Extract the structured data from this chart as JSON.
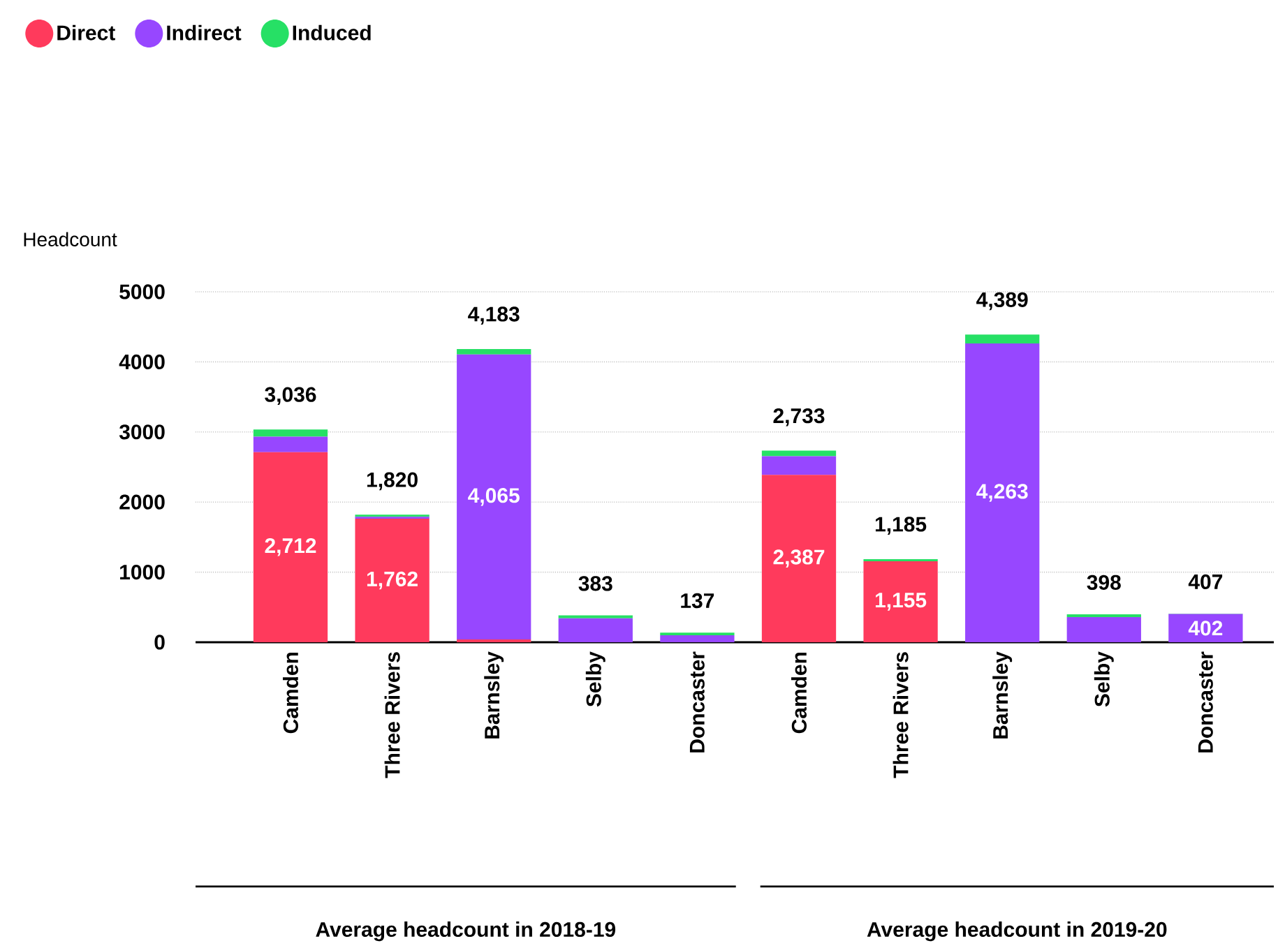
{
  "chart_data": {
    "type": "bar",
    "stacked": true,
    "ylabel": "Headcount",
    "categories": [
      "Camden",
      "Three Rivers",
      "Barnsley",
      "Selby",
      "Doncaster",
      "Camden",
      "Three Rivers",
      "Barnsley",
      "Selby",
      "Doncaster"
    ],
    "series": [
      {
        "name": "Direct",
        "color": "#ff3a5c",
        "values": [
          2712,
          1762,
          40,
          0,
          0,
          2387,
          1155,
          0,
          0,
          0
        ],
        "value_labels": [
          "2,712",
          "1,762",
          null,
          null,
          null,
          "2,387",
          "1,155",
          null,
          null,
          null
        ]
      },
      {
        "name": "Indirect",
        "color": "#9747ff",
        "values": [
          220,
          28,
          4065,
          340,
          100,
          266,
          0,
          4263,
          358,
          402
        ],
        "value_labels": [
          null,
          null,
          "4,065",
          null,
          null,
          null,
          null,
          "4,263",
          null,
          "402"
        ]
      },
      {
        "name": "Induced",
        "color": "#26e065",
        "values": [
          104,
          30,
          78,
          43,
          37,
          80,
          30,
          126,
          40,
          5
        ]
      }
    ],
    "totals": [
      "3,036",
      "1,820",
      "4,183",
      "383",
      "137",
      "2,733",
      "1,185",
      "4,389",
      "398",
      "407"
    ],
    "ylim": [
      0,
      5000
    ],
    "yticks": [
      0,
      1000,
      2000,
      3000,
      4000,
      5000
    ],
    "grid": "y",
    "legend": "top left",
    "annotations": [
      "Average headcount in 2018-19",
      "Average headcount in 2019-20"
    ]
  }
}
